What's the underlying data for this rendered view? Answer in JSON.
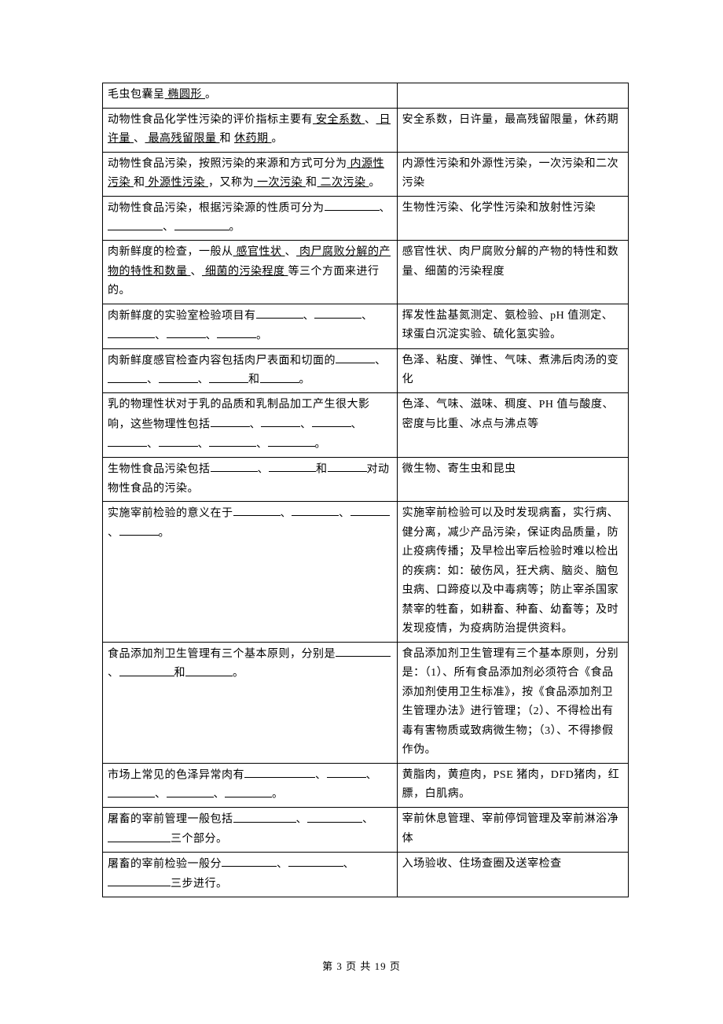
{
  "table": {
    "columns": [
      "question",
      "answer"
    ],
    "col_widths": [
      "56%",
      "44%"
    ],
    "border_color": "#000000",
    "text_color": "#000000",
    "background_color": "#ffffff",
    "font_family": "SimSun",
    "font_size_pt": 10.5,
    "line_height": 1.75,
    "rows": [
      {
        "q_parts": [
          "毛虫包囊呈",
          {
            "u": "椭圆形"
          },
          "。"
        ],
        "a": ""
      },
      {
        "q_parts": [
          "动物性食品化学性污染的评价指标主要有",
          {
            "u": "安全系数"
          },
          "、",
          {
            "u": "日许量"
          },
          "、",
          {
            "u": "最高残留限量"
          },
          "和 ",
          {
            "u": "休药期"
          },
          "。"
        ],
        "a": "安全系数，日许量，最高残留限量，休药期"
      },
      {
        "q_parts": [
          "动物性食品污染，按照污染的来源和方式可分为",
          {
            "u": "内源性污染"
          },
          " 和",
          {
            "u": "外源性污染"
          },
          "，又称为",
          {
            "u": "一次污染"
          },
          " 和",
          {
            "u": "二次污染"
          },
          "。"
        ],
        "a": "内源性污染和外源性污染，一次污染和二次污染"
      },
      {
        "q_parts": [
          "动物性食品污染，根据污染源的性质可分为",
          {
            "blank": 70
          },
          "、",
          {
            "blank": 70
          },
          "、",
          {
            "blank": 70
          },
          "。"
        ],
        "a": "生物性污染、化学性污染和放射性污染"
      },
      {
        "q_parts": [
          "肉新鲜度的检查，一般从",
          {
            "u": "感官性状"
          },
          "、",
          {
            "u": "肉尸腐败分解的产物的特性和数量"
          },
          "、",
          {
            "u": "细菌的污染程度"
          },
          "等三个方面来进行的。"
        ],
        "a": "感官性状、肉尸腐败分解的产物的特性和数量、细菌的污染程度"
      },
      {
        "q_parts": [
          "肉新鲜度的实验室检验项目有",
          {
            "blank": 60
          },
          "、",
          {
            "blank": 60
          },
          "、",
          {
            "blank": 60
          },
          "、",
          {
            "blank": 50
          },
          "、",
          {
            "blank": 50
          },
          "。"
        ],
        "a": "挥发性盐基氮测定、氨检验、pH 值测定、球蛋白沉淀实验、硫化氢实验。"
      },
      {
        "q_parts": [
          "肉新鲜度感官检查内容包括肉尸表面和切面的",
          {
            "blank": 50
          },
          "、",
          {
            "blank": 50
          },
          "、",
          {
            "blank": 50
          },
          "、",
          {
            "blank": 50
          },
          "和",
          {
            "blank": 50
          },
          "。"
        ],
        "a": "色泽、粘度、弹性、气味、煮沸后肉汤的变化"
      },
      {
        "q_parts": [
          "乳的物理性状对于乳的品质和乳制品加工产生很大影响，这些物理性包括",
          {
            "blank": 50
          },
          "、",
          {
            "blank": 50
          },
          "、",
          {
            "blank": 50
          },
          "、",
          {
            "blank": 50
          },
          "、",
          {
            "blank": 50
          },
          "、",
          {
            "blank": 60
          },
          "、",
          {
            "blank": 60
          },
          "。"
        ],
        "a": "色泽、气味、滋味、稠度、PH 值与酸度、密度与比重、冰点与沸点等"
      },
      {
        "q_parts": [
          "生物性食品污染包括",
          {
            "blank": 60
          },
          "、",
          {
            "blank": 60
          },
          "和",
          {
            "blank": 50
          },
          "对动物性食品的污染。"
        ],
        "a": "微生物、寄生虫和昆虫"
      },
      {
        "q_parts": [
          "实施宰前检验的意义在于",
          {
            "blank": 60
          },
          "、",
          {
            "blank": 60
          },
          "、",
          {
            "blank": 50
          },
          "、",
          {
            "blank": 50
          },
          "。"
        ],
        "a": "实施宰前检验可以及时发现病畜，实行病、健分离，减少产品污染，保证肉品质量，防止疫病传播；及早检出宰后检验时难以检出的疾病：如：破伤风，狂犬病、脑炎、脑包虫病、口蹄疫以及中毒病等；防止宰杀国家禁宰的牲畜，如耕畜、种畜、幼畜等；及时发现疫情，为疫病防治提供资料。"
      },
      {
        "q_parts": [
          "食品添加剂卫生管理有三个基本原则，分别是",
          {
            "blank": 70
          },
          "、",
          {
            "blank": 70
          },
          "和",
          {
            "blank": 60
          },
          "。"
        ],
        "a": "食品添加剂卫生管理有三个基本原则，分别是：（1）、所有食品添加剂必须符合《食品添加剂使用卫生标准》，按《食品添加剂卫生管理办法》进行管理；（2）、不得检出有毒有害物质或致病微生物；（3）、不得掺假作伪。"
      },
      {
        "q_parts": [
          "市场上常见的色泽异常肉有",
          {
            "blank": 90
          },
          "、",
          {
            "blank": 50
          },
          "、",
          {
            "blank": 60
          },
          "、",
          {
            "blank": 60
          },
          "、",
          {
            "blank": 60
          },
          "。"
        ],
        "a": "黄脂肉，黄疸肉，PSE 猪肉，DFD猪肉，红膘，白肌病。"
      },
      {
        "q_parts": [
          "屠畜的宰前管理一般包括",
          {
            "blank": 80
          },
          "、",
          {
            "blank": 70
          },
          "、",
          {
            "blank": 80
          },
          "三个部分。"
        ],
        "a": "宰前休息管理、宰前停饲管理及宰前淋浴净体"
      },
      {
        "q_parts": [
          "屠畜的宰前检验一般分",
          {
            "blank": 70
          },
          "、",
          {
            "blank": 70
          },
          "、",
          {
            "blank": 80
          },
          "三步进行。"
        ],
        "a": "入场验收、住场查圈及送宰检查"
      }
    ]
  },
  "footer": {
    "text": "第 3 页 共 19 页",
    "current_page": 3,
    "total_pages": 19,
    "font_size_pt": 10
  }
}
